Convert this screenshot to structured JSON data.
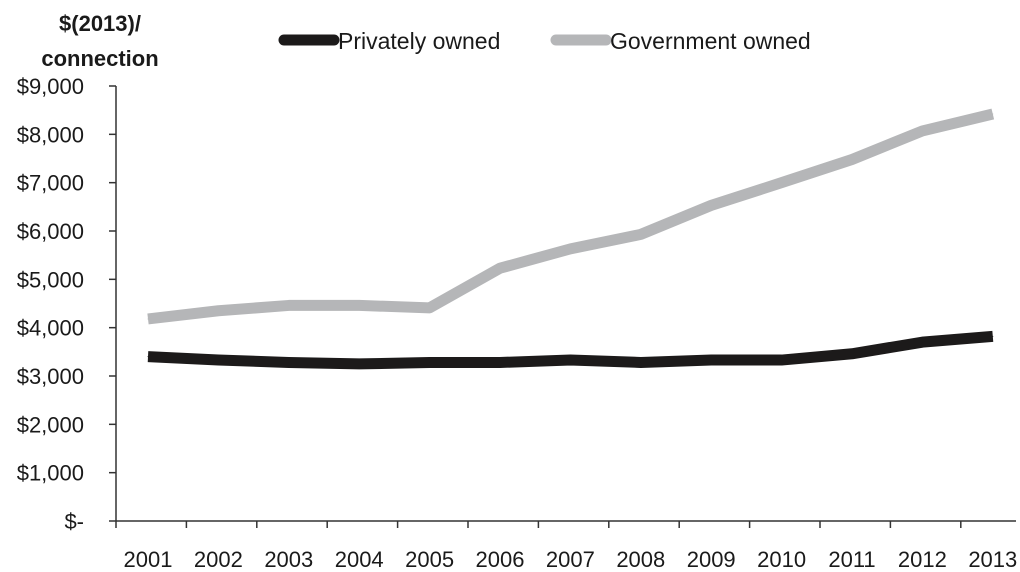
{
  "chart_data": {
    "type": "line",
    "title": "",
    "xlabel": "",
    "ylabel_lines": [
      "$(2013)/",
      "connection"
    ],
    "categories": [
      "2001",
      "2002",
      "2003",
      "2004",
      "2005",
      "2006",
      "2007",
      "2008",
      "2009",
      "2010",
      "2011",
      "2012",
      "2013"
    ],
    "y_tick_values": [
      0,
      1000,
      2000,
      3000,
      4000,
      5000,
      6000,
      7000,
      8000,
      9000
    ],
    "y_tick_labels": [
      "$-",
      "$1,000",
      "$2,000",
      "$3,000",
      "$4,000",
      "$5,000",
      "$6,000",
      "$7,000",
      "$8,000",
      "$9,000"
    ],
    "ylim": [
      0,
      9000
    ],
    "grid": false,
    "legend_position": "top",
    "series": [
      {
        "name": "Privately owned",
        "color": "#1c1a1a",
        "values": [
          3400,
          3330,
          3280,
          3250,
          3280,
          3280,
          3330,
          3280,
          3330,
          3330,
          3460,
          3700,
          3820
        ]
      },
      {
        "name": "Government owned",
        "color": "#b5b6b8",
        "values": [
          4180,
          4350,
          4460,
          4460,
          4410,
          5230,
          5630,
          5930,
          6530,
          7000,
          7480,
          8070,
          8420
        ]
      }
    ]
  }
}
